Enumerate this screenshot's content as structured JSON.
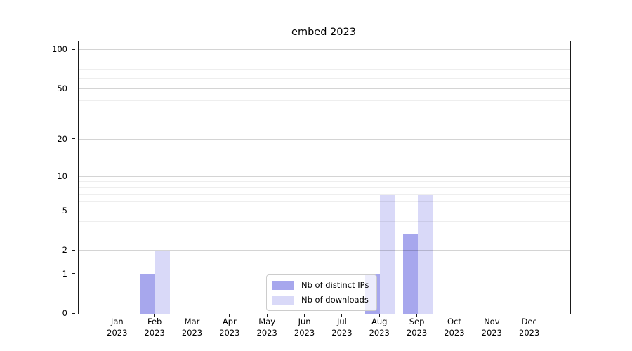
{
  "chart_data": {
    "type": "bar",
    "title": "embed 2023",
    "categories": [
      "Jan 2023",
      "Feb 2023",
      "Mar 2023",
      "Apr 2023",
      "May 2023",
      "Jun 2023",
      "Jul 2023",
      "Aug 2023",
      "Sep 2023",
      "Oct 2023",
      "Nov 2023",
      "Dec 2023"
    ],
    "series": [
      {
        "name": "Nb of distinct IPs",
        "color": "#a7a7ed",
        "values": [
          0,
          1,
          0,
          0,
          0,
          0,
          0,
          1,
          3,
          0,
          0,
          0
        ]
      },
      {
        "name": "Nb of downloads",
        "color": "#d9d9f8",
        "values": [
          0,
          2,
          0,
          0,
          0,
          0,
          0,
          7,
          7,
          0,
          0,
          0
        ]
      }
    ],
    "y_axis": {
      "scale": "log1p",
      "range": [
        0,
        100
      ],
      "ticks": [
        0,
        1,
        2,
        5,
        10,
        20,
        50,
        100
      ],
      "tick_labels": [
        "0",
        "1",
        "2",
        "5",
        "10",
        "20",
        "50",
        "100"
      ],
      "minor_gridlines": [
        3,
        4,
        6,
        7,
        8,
        9,
        30,
        40,
        60,
        70,
        80,
        90
      ]
    },
    "legend": {
      "position": "lower center",
      "entries": [
        "Nb of distinct IPs",
        "Nb of downloads"
      ]
    },
    "grid": true
  }
}
